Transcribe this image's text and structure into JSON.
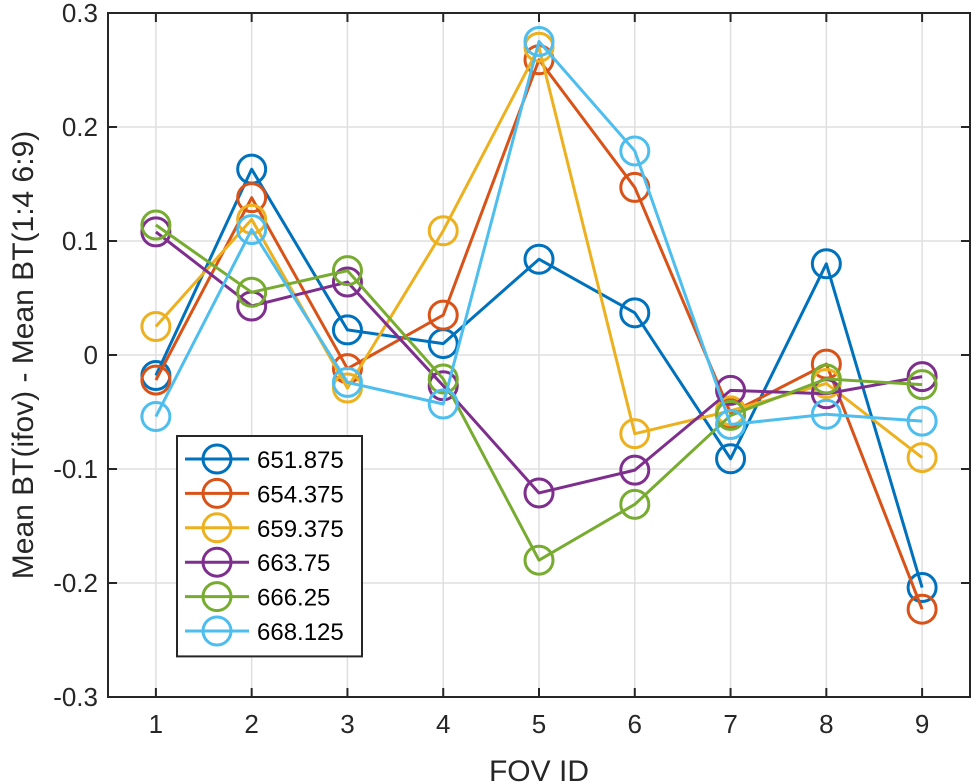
{
  "chart_data": {
    "type": "line",
    "xlabel": "FOV ID",
    "ylabel": "Mean BT(ifov) - Mean BT(1:4 6:9)",
    "x": [
      1,
      2,
      3,
      4,
      5,
      6,
      7,
      8,
      9
    ],
    "xlim": [
      0.5,
      9.5
    ],
    "ylim": [
      -0.3,
      0.3
    ],
    "xticks": [
      1,
      2,
      3,
      4,
      5,
      6,
      7,
      8,
      9
    ],
    "yticks": [
      -0.3,
      -0.2,
      -0.1,
      0,
      0.1,
      0.2,
      0.3
    ],
    "ytick_labels": [
      "-0.3",
      "-0.2",
      "-0.1",
      "0",
      "0.1",
      "0.2",
      "0.3"
    ],
    "grid": true,
    "legend_position": "bottom-left",
    "marker": "circle",
    "series": [
      {
        "name": "651.875",
        "color": "#0072BD",
        "values": [
          -0.018,
          0.163,
          0.022,
          0.01,
          0.084,
          0.037,
          -0.091,
          0.08,
          -0.204
        ]
      },
      {
        "name": "654.375",
        "color": "#D95319",
        "values": [
          -0.022,
          0.138,
          -0.012,
          0.035,
          0.259,
          0.147,
          -0.051,
          -0.008,
          -0.223
        ]
      },
      {
        "name": "659.375",
        "color": "#EDB120",
        "values": [
          0.025,
          0.119,
          -0.029,
          0.109,
          0.27,
          -0.069,
          -0.049,
          -0.025,
          -0.09
        ]
      },
      {
        "name": "663.75",
        "color": "#7E2F8E",
        "values": [
          0.108,
          0.043,
          0.064,
          -0.027,
          -0.121,
          -0.101,
          -0.031,
          -0.034,
          -0.019
        ]
      },
      {
        "name": "666.25",
        "color": "#77AC30",
        "values": [
          0.114,
          0.055,
          0.074,
          -0.021,
          -0.18,
          -0.131,
          -0.053,
          -0.021,
          -0.026
        ]
      },
      {
        "name": "668.125",
        "color": "#4DBEEE",
        "values": [
          -0.054,
          0.11,
          -0.024,
          -0.043,
          0.275,
          0.179,
          -0.061,
          -0.052,
          -0.058
        ]
      }
    ]
  }
}
